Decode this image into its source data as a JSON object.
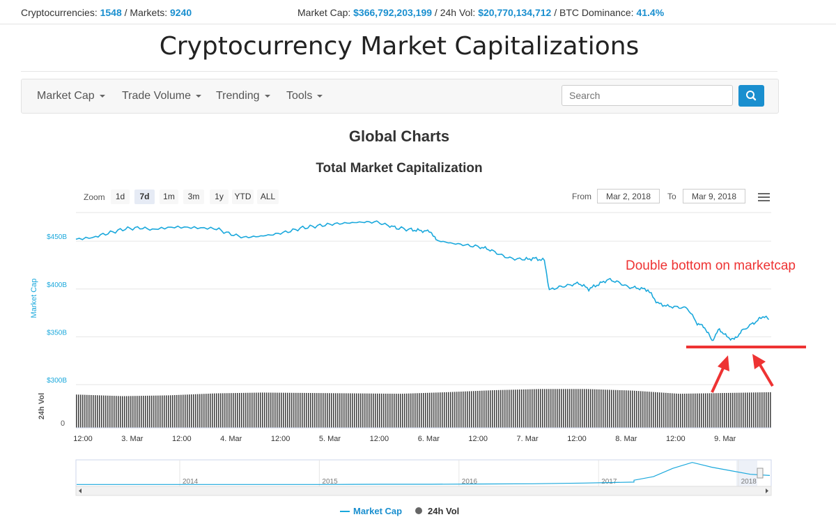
{
  "topbar": {
    "cryptos_label": "Cryptocurrencies:",
    "cryptos_value": "1548",
    "markets_label": "/ Markets:",
    "markets_value": "9240",
    "mcap_label": "Market Cap:",
    "mcap_value": "$366,792,203,199",
    "vol_label": "/ 24h Vol:",
    "vol_value": "$20,770,134,712",
    "dom_label": "/ BTC Dominance:",
    "dom_value": "41.4%"
  },
  "page_title": "Cryptocurrency Market Capitalizations",
  "nav": {
    "items": [
      {
        "label": "Market Cap"
      },
      {
        "label": "Trade Volume"
      },
      {
        "label": "Trending"
      },
      {
        "label": "Tools"
      }
    ],
    "search_placeholder": "Search",
    "search_icon": "search-icon"
  },
  "section_title": "Global Charts",
  "chart_title": "Total Market Capitalization",
  "zoom": {
    "label": "Zoom",
    "options": [
      "1d",
      "7d",
      "1m",
      "3m",
      "1y",
      "YTD",
      "ALL"
    ],
    "selected": "7d"
  },
  "range": {
    "from_label": "From",
    "from_value": "Mar 2, 2018",
    "to_label": "To",
    "to_value": "Mar 9, 2018"
  },
  "menu_icon": "hamburger-menu-icon",
  "annotation": {
    "text": "Double bottom on marketcap",
    "color": "#ee3333"
  },
  "colors": {
    "accent": "#1a8fcf",
    "line": "#1aa8dc",
    "volume": "#444444"
  },
  "chart_data": {
    "type": "line",
    "x_ticks": [
      "12:00",
      "3. Mar",
      "12:00",
      "4. Mar",
      "12:00",
      "5. Mar",
      "12:00",
      "6. Mar",
      "12:00",
      "7. Mar",
      "12:00",
      "8. Mar",
      "12:00",
      "9. Mar"
    ],
    "y_ticks": [
      "$300B",
      "$350B",
      "$400B",
      "$450B"
    ],
    "ylabel": "Market Cap",
    "ylabel2": "24h Vol",
    "vol_tick": "0",
    "ylim": [
      300,
      480
    ],
    "grid": true,
    "series": [
      {
        "name": "Market Cap",
        "points": [
          [
            0,
            452
          ],
          [
            0.4,
            455
          ],
          [
            0.7,
            459
          ],
          [
            1.0,
            463
          ],
          [
            1.3,
            464
          ],
          [
            1.6,
            462
          ],
          [
            2.0,
            464
          ],
          [
            2.4,
            464
          ],
          [
            2.8,
            464
          ],
          [
            3.1,
            458
          ],
          [
            3.4,
            454
          ],
          [
            3.7,
            455
          ],
          [
            4.0,
            457
          ],
          [
            4.3,
            460
          ],
          [
            4.6,
            464
          ],
          [
            4.9,
            466
          ],
          [
            5.2,
            468
          ],
          [
            5.5,
            469
          ],
          [
            5.8,
            470
          ],
          [
            6.1,
            470
          ],
          [
            6.3,
            467
          ],
          [
            6.5,
            464
          ],
          [
            6.8,
            462
          ],
          [
            7.0,
            461
          ],
          [
            7.2,
            460
          ],
          [
            7.3,
            451
          ],
          [
            7.6,
            448
          ],
          [
            7.9,
            446
          ],
          [
            8.2,
            444
          ],
          [
            8.4,
            441
          ],
          [
            8.6,
            436
          ],
          [
            8.8,
            432
          ],
          [
            9.1,
            431
          ],
          [
            9.3,
            432
          ],
          [
            9.5,
            430
          ],
          [
            9.6,
            399
          ],
          [
            9.8,
            402
          ],
          [
            10.0,
            404
          ],
          [
            10.2,
            406
          ],
          [
            10.4,
            400
          ],
          [
            10.6,
            405
          ],
          [
            10.8,
            410
          ],
          [
            11.0,
            407
          ],
          [
            11.2,
            402
          ],
          [
            11.4,
            401
          ],
          [
            11.6,
            399
          ],
          [
            11.8,
            385
          ],
          [
            12.0,
            382
          ],
          [
            12.2,
            381
          ],
          [
            12.4,
            380
          ],
          [
            12.6,
            364
          ],
          [
            12.75,
            360
          ],
          [
            12.9,
            346
          ],
          [
            13.05,
            358
          ],
          [
            13.2,
            350
          ],
          [
            13.35,
            347
          ],
          [
            13.5,
            356
          ],
          [
            13.7,
            363
          ],
          [
            13.85,
            368
          ],
          [
            13.95,
            372
          ],
          [
            14.05,
            368
          ]
        ],
        "unit": "B"
      },
      {
        "name": "24h Vol",
        "values": [
          0.84,
          0.8,
          0.82,
          0.87,
          0.89,
          0.88,
          0.87,
          0.86,
          0.9,
          0.95,
          0.98,
          0.98,
          0.94,
          0.86,
          0.88,
          0.9
        ],
        "unit": "relative"
      }
    ],
    "navigator_years": [
      "2014",
      "2015",
      "2016",
      "2017",
      "2018"
    ],
    "navigator_values": [
      0.02,
      0.02,
      0.02,
      0.02,
      0.02,
      0.02,
      0.03,
      0.03,
      0.04,
      0.05,
      0.08,
      0.12,
      0.2,
      0.35,
      0.7,
      0.95,
      0.75,
      0.6,
      0.45,
      0.4
    ]
  },
  "legend": {
    "items": [
      {
        "label": "Market Cap"
      },
      {
        "label": "24h Vol"
      }
    ]
  }
}
